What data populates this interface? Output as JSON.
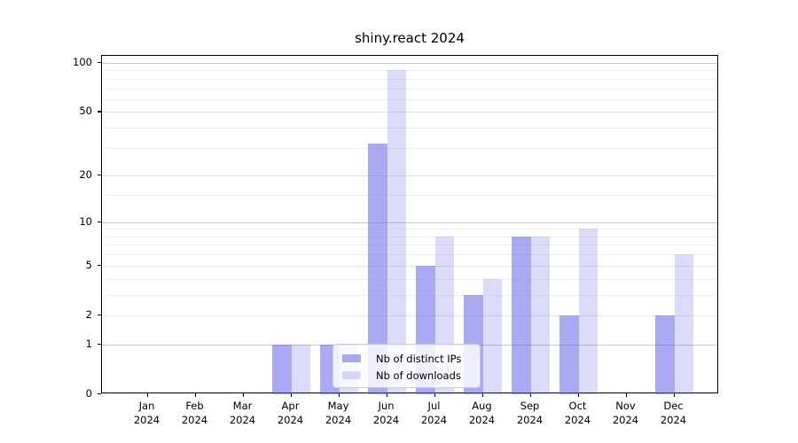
{
  "title": "shiny.react 2024",
  "chart_data": {
    "type": "bar",
    "title": "shiny.react 2024",
    "categories": [
      "Jan 2024",
      "Feb 2024",
      "Mar 2024",
      "Apr 2024",
      "May 2024",
      "Jun 2024",
      "Jul 2024",
      "Aug 2024",
      "Sep 2024",
      "Oct 2024",
      "Nov 2024",
      "Dec 2024"
    ],
    "series": [
      {
        "name": "Nb of distinct IPs",
        "color": "rgba(100,100,235,0.55)",
        "values": [
          0,
          0,
          0,
          1,
          1,
          32,
          5,
          3,
          8,
          2,
          0,
          2
        ]
      },
      {
        "name": "Nb of downloads",
        "color": "rgba(100,100,235,0.23)",
        "values": [
          0,
          0,
          0,
          1,
          1,
          90,
          8,
          4,
          8,
          9,
          0,
          6
        ]
      }
    ],
    "y_axis": {
      "scale": "log1p",
      "tick_labels": [
        "0",
        "1",
        "2",
        "5",
        "10",
        "20",
        "50",
        "100"
      ],
      "tick_values": [
        0,
        1,
        2,
        5,
        10,
        20,
        50,
        100
      ],
      "minor_tick_values": [
        3,
        4,
        6,
        7,
        8,
        9,
        15,
        30,
        40,
        60,
        70,
        80,
        90
      ],
      "range": [
        0,
        100
      ]
    },
    "legend": {
      "position": "lower-center"
    },
    "grid": true
  }
}
